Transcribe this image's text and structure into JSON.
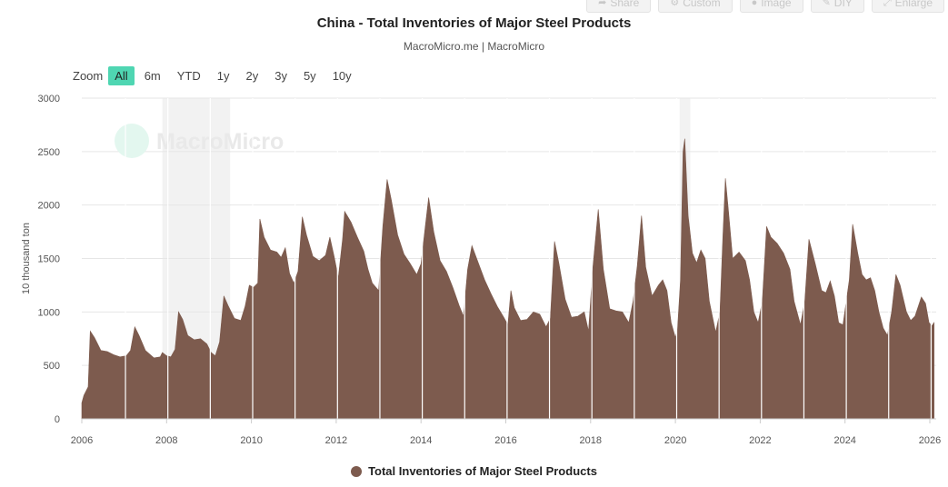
{
  "toolbar": {
    "share": "Share",
    "custom": "Custom",
    "image": "Image",
    "diy": "DIY",
    "enlarge": "Enlarge"
  },
  "header": {
    "title": "China - Total Inventories of Major Steel Products",
    "subtitle": "MacroMicro.me | MacroMicro"
  },
  "zoom": {
    "label": "Zoom",
    "buttons": [
      "All",
      "6m",
      "YTD",
      "1y",
      "2y",
      "3y",
      "5y",
      "10y"
    ],
    "active": "All"
  },
  "watermark": "MacroMicro",
  "colors": {
    "series": "#7d5b4e",
    "accent": "#4fd6b2",
    "band": "#f2f2f2",
    "grid": "#e6e6e6"
  },
  "chart_data": {
    "type": "area",
    "title": "China - Total Inventories of Major Steel Products",
    "ylabel": "10 thousand ton",
    "xlabel": "",
    "ylim": [
      0,
      3000
    ],
    "yticks": [
      0,
      500,
      1000,
      1500,
      2000,
      2500,
      3000
    ],
    "xlim": [
      2006,
      2026.15
    ],
    "xticks": [
      2006,
      2008,
      2010,
      2012,
      2014,
      2016,
      2018,
      2020,
      2022,
      2024,
      2026
    ],
    "grid": true,
    "legend_position": "bottom",
    "shaded_periods": [
      [
        2007.9,
        2009.5
      ],
      [
        2020.1,
        2020.35
      ]
    ],
    "series": [
      {
        "name": "Total Inventories of Major Steel Products",
        "points": [
          [
            2006.0,
            150
          ],
          [
            2006.05,
            220
          ],
          [
            2006.15,
            300
          ],
          [
            2006.2,
            820
          ],
          [
            2006.3,
            760
          ],
          [
            2006.45,
            640
          ],
          [
            2006.6,
            630
          ],
          [
            2006.75,
            600
          ],
          [
            2006.9,
            580
          ],
          [
            2007.05,
            590
          ],
          [
            2007.15,
            640
          ],
          [
            2007.25,
            860
          ],
          [
            2007.35,
            780
          ],
          [
            2007.5,
            640
          ],
          [
            2007.7,
            570
          ],
          [
            2007.85,
            580
          ],
          [
            2007.9,
            620
          ],
          [
            2008.0,
            590
          ],
          [
            2008.1,
            580
          ],
          [
            2008.2,
            650
          ],
          [
            2008.28,
            1000
          ],
          [
            2008.38,
            930
          ],
          [
            2008.5,
            780
          ],
          [
            2008.65,
            740
          ],
          [
            2008.8,
            750
          ],
          [
            2008.95,
            700
          ],
          [
            2009.05,
            620
          ],
          [
            2009.15,
            590
          ],
          [
            2009.25,
            720
          ],
          [
            2009.35,
            1150
          ],
          [
            2009.45,
            1060
          ],
          [
            2009.6,
            940
          ],
          [
            2009.75,
            920
          ],
          [
            2009.85,
            1050
          ],
          [
            2009.95,
            1250
          ],
          [
            2010.05,
            1230
          ],
          [
            2010.15,
            1270
          ],
          [
            2010.2,
            1870
          ],
          [
            2010.3,
            1700
          ],
          [
            2010.45,
            1580
          ],
          [
            2010.6,
            1560
          ],
          [
            2010.7,
            1510
          ],
          [
            2010.8,
            1600
          ],
          [
            2010.9,
            1360
          ],
          [
            2011.0,
            1270
          ],
          [
            2011.1,
            1380
          ],
          [
            2011.2,
            1890
          ],
          [
            2011.3,
            1720
          ],
          [
            2011.45,
            1520
          ],
          [
            2011.6,
            1480
          ],
          [
            2011.75,
            1530
          ],
          [
            2011.85,
            1700
          ],
          [
            2011.95,
            1520
          ],
          [
            2012.05,
            1320
          ],
          [
            2012.15,
            1680
          ],
          [
            2012.2,
            1940
          ],
          [
            2012.35,
            1840
          ],
          [
            2012.5,
            1700
          ],
          [
            2012.65,
            1570
          ],
          [
            2012.75,
            1400
          ],
          [
            2012.85,
            1270
          ],
          [
            2013.0,
            1200
          ],
          [
            2013.1,
            1800
          ],
          [
            2013.2,
            2240
          ],
          [
            2013.3,
            2050
          ],
          [
            2013.45,
            1720
          ],
          [
            2013.6,
            1540
          ],
          [
            2013.75,
            1450
          ],
          [
            2013.9,
            1350
          ],
          [
            2014.0,
            1450
          ],
          [
            2014.1,
            1800
          ],
          [
            2014.18,
            2070
          ],
          [
            2014.3,
            1750
          ],
          [
            2014.45,
            1480
          ],
          [
            2014.6,
            1380
          ],
          [
            2014.75,
            1230
          ],
          [
            2014.9,
            1060
          ],
          [
            2015.0,
            960
          ],
          [
            2015.1,
            1400
          ],
          [
            2015.2,
            1620
          ],
          [
            2015.35,
            1460
          ],
          [
            2015.5,
            1300
          ],
          [
            2015.65,
            1170
          ],
          [
            2015.8,
            1050
          ],
          [
            2015.95,
            950
          ],
          [
            2016.05,
            880
          ],
          [
            2016.12,
            1200
          ],
          [
            2016.2,
            1040
          ],
          [
            2016.35,
            920
          ],
          [
            2016.5,
            930
          ],
          [
            2016.65,
            1000
          ],
          [
            2016.8,
            980
          ],
          [
            2016.95,
            860
          ],
          [
            2017.05,
            940
          ],
          [
            2017.15,
            1660
          ],
          [
            2017.25,
            1460
          ],
          [
            2017.4,
            1120
          ],
          [
            2017.55,
            950
          ],
          [
            2017.7,
            960
          ],
          [
            2017.85,
            1000
          ],
          [
            2017.95,
            820
          ],
          [
            2018.05,
            1400
          ],
          [
            2018.18,
            1960
          ],
          [
            2018.3,
            1400
          ],
          [
            2018.45,
            1030
          ],
          [
            2018.6,
            1010
          ],
          [
            2018.75,
            1000
          ],
          [
            2018.9,
            900
          ],
          [
            2019.0,
            1100
          ],
          [
            2019.1,
            1430
          ],
          [
            2019.2,
            1900
          ],
          [
            2019.3,
            1420
          ],
          [
            2019.45,
            1150
          ],
          [
            2019.6,
            1250
          ],
          [
            2019.7,
            1300
          ],
          [
            2019.8,
            1200
          ],
          [
            2019.9,
            900
          ],
          [
            2020.0,
            760
          ],
          [
            2020.05,
            840
          ],
          [
            2020.12,
            1300
          ],
          [
            2020.18,
            2500
          ],
          [
            2020.22,
            2620
          ],
          [
            2020.3,
            1900
          ],
          [
            2020.4,
            1550
          ],
          [
            2020.5,
            1460
          ],
          [
            2020.6,
            1580
          ],
          [
            2020.7,
            1500
          ],
          [
            2020.8,
            1100
          ],
          [
            2020.95,
            810
          ],
          [
            2021.05,
            1000
          ],
          [
            2021.12,
            1700
          ],
          [
            2021.18,
            2250
          ],
          [
            2021.25,
            1950
          ],
          [
            2021.35,
            1500
          ],
          [
            2021.5,
            1560
          ],
          [
            2021.65,
            1480
          ],
          [
            2021.75,
            1300
          ],
          [
            2021.85,
            1000
          ],
          [
            2021.95,
            900
          ],
          [
            2022.05,
            1100
          ],
          [
            2022.15,
            1800
          ],
          [
            2022.25,
            1700
          ],
          [
            2022.4,
            1640
          ],
          [
            2022.55,
            1550
          ],
          [
            2022.7,
            1400
          ],
          [
            2022.8,
            1100
          ],
          [
            2022.95,
            880
          ],
          [
            2023.05,
            1100
          ],
          [
            2023.15,
            1680
          ],
          [
            2023.3,
            1450
          ],
          [
            2023.45,
            1200
          ],
          [
            2023.55,
            1180
          ],
          [
            2023.65,
            1290
          ],
          [
            2023.75,
            1150
          ],
          [
            2023.85,
            900
          ],
          [
            2023.95,
            880
          ],
          [
            2024.1,
            1300
          ],
          [
            2024.18,
            1820
          ],
          [
            2024.3,
            1550
          ],
          [
            2024.4,
            1350
          ],
          [
            2024.5,
            1300
          ],
          [
            2024.6,
            1320
          ],
          [
            2024.7,
            1200
          ],
          [
            2024.8,
            1000
          ],
          [
            2024.9,
            850
          ],
          [
            2025.0,
            780
          ],
          [
            2025.1,
            1000
          ],
          [
            2025.2,
            1350
          ],
          [
            2025.3,
            1250
          ],
          [
            2025.45,
            1000
          ],
          [
            2025.55,
            920
          ],
          [
            2025.65,
            960
          ],
          [
            2025.8,
            1140
          ],
          [
            2025.9,
            1080
          ],
          [
            2025.98,
            900
          ],
          [
            2026.05,
            870
          ],
          [
            2026.1,
            900
          ]
        ]
      }
    ]
  }
}
